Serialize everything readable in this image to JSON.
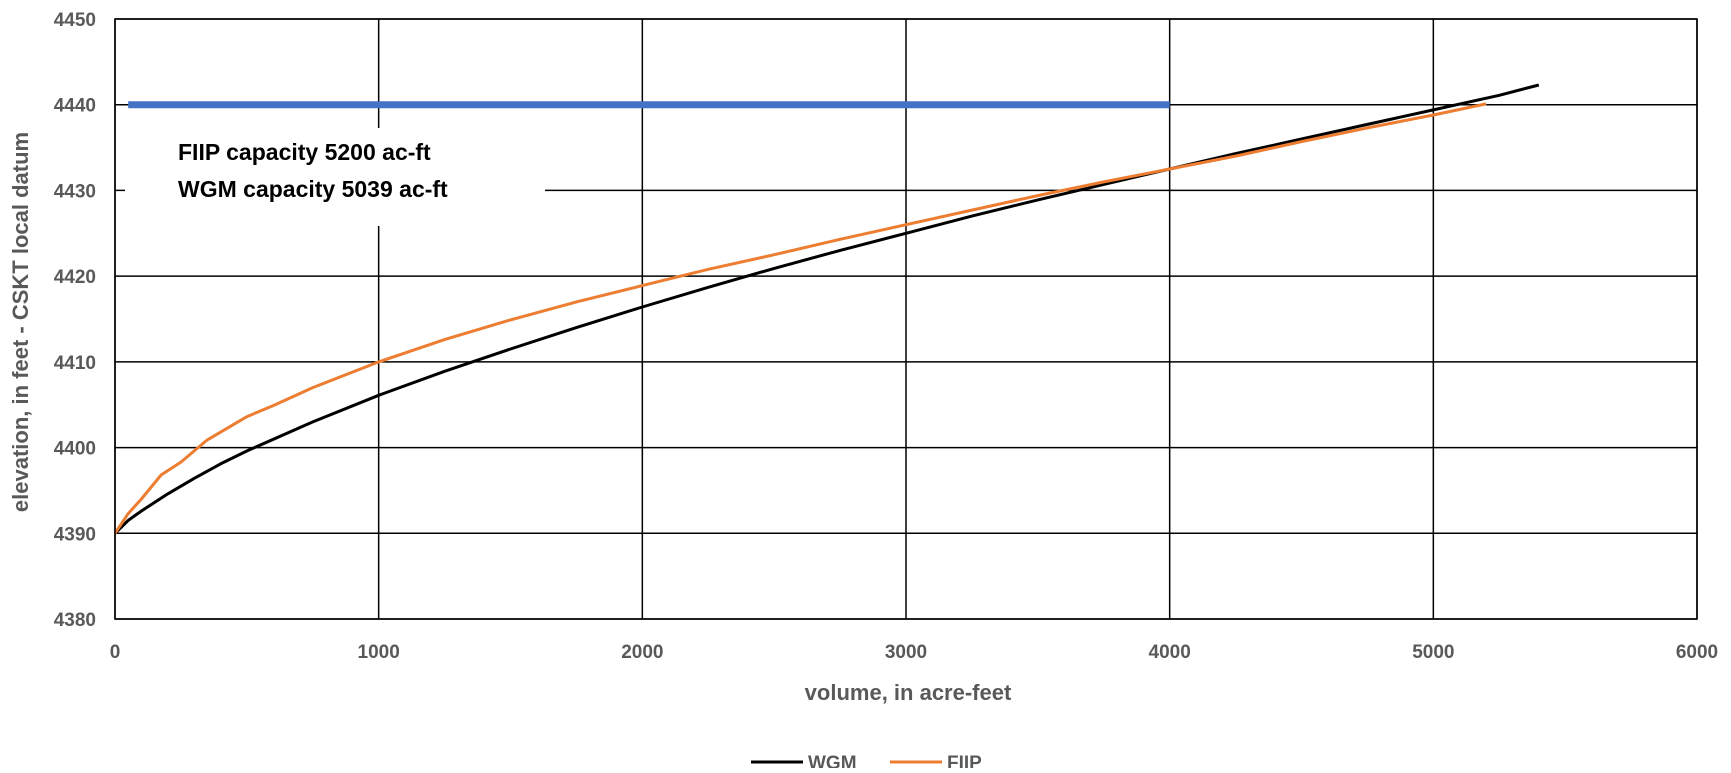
{
  "chart_data": {
    "type": "line",
    "xlabel": "volume, in acre-feet",
    "ylabel": "elevation, in feet - CSKT local datum",
    "xlim": [
      0,
      6000
    ],
    "ylim": [
      4380,
      4450
    ],
    "x_ticks": [
      "0",
      "1000",
      "2000",
      "3000",
      "4000",
      "5000",
      "6000"
    ],
    "y_ticks": [
      "4380",
      "4390",
      "4400",
      "4410",
      "4420",
      "4430",
      "4440",
      "4450"
    ],
    "grid": true,
    "legend_position": "bottom-center",
    "annotations": [
      "FIIP capacity 5200 ac-ft",
      "WGM capacity 5039 ac-ft"
    ],
    "reference_line": {
      "y": 4440,
      "x_start": 50,
      "x_end": 4000,
      "color": "#4472C4"
    },
    "series": [
      {
        "name": "WGM",
        "color": "#000000",
        "x": [
          0,
          50,
          100,
          200,
          300,
          400,
          500,
          750,
          1000,
          1250,
          1500,
          1750,
          2000,
          2250,
          2500,
          2750,
          3000,
          3250,
          3500,
          3750,
          4000,
          4250,
          4500,
          4750,
          5000,
          5250,
          5400
        ],
        "y": [
          4390,
          4391.5,
          4392.6,
          4394.6,
          4396.4,
          4398.1,
          4399.6,
          4403.0,
          4406.1,
          4408.9,
          4411.5,
          4414.0,
          4416.4,
          4418.7,
          4420.9,
          4423.0,
          4425.0,
          4427.0,
          4428.9,
          4430.7,
          4432.5,
          4434.3,
          4436.0,
          4437.7,
          4439.4,
          4441.1,
          4442.3
        ]
      },
      {
        "name": "FIIP",
        "color": "#ED7D31",
        "x": [
          0,
          50,
          100,
          175,
          250,
          350,
          500,
          600,
          750,
          1000,
          1250,
          1500,
          1750,
          2000,
          2250,
          2500,
          2750,
          3000,
          3250,
          3500,
          3750,
          4000,
          4250,
          4500,
          4750,
          5000,
          5200
        ],
        "y": [
          4390,
          4392.3,
          4394.0,
          4396.8,
          4398.3,
          4400.9,
          4403.6,
          4404.9,
          4407.0,
          4410.0,
          4412.6,
          4414.9,
          4417.0,
          4418.9,
          4420.8,
          4422.5,
          4424.3,
          4426.0,
          4427.7,
          4429.4,
          4431.0,
          4432.5,
          4434.0,
          4435.7,
          4437.3,
          4438.8,
          4440.1
        ]
      }
    ]
  }
}
